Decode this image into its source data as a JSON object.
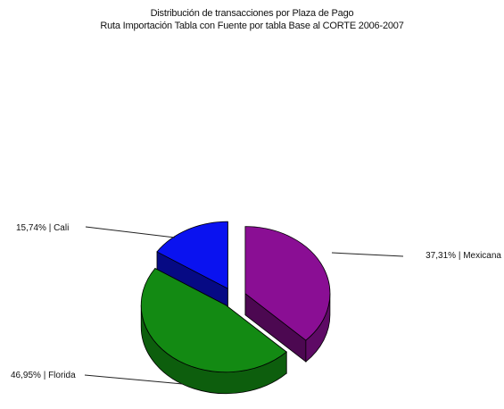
{
  "chart_data": {
    "type": "pie",
    "style": "3d-exploded",
    "title": "Distribución de transacciones por Plaza de Pago",
    "subtitle": "Ruta Importación Tabla con Fuente por tabla Base al CORTE 2006-2007",
    "slices": [
      {
        "label": "Mexicana",
        "value": 37.31,
        "display": "37,31% | Mexicana",
        "color": "#8a0e94"
      },
      {
        "label": "Florida",
        "value": 46.95,
        "display": "46,95% | Florida",
        "color": "#138a13"
      },
      {
        "label": "Cali",
        "value": 15.74,
        "display": "15,74% | Cali",
        "color": "#0a12f0"
      }
    ]
  }
}
